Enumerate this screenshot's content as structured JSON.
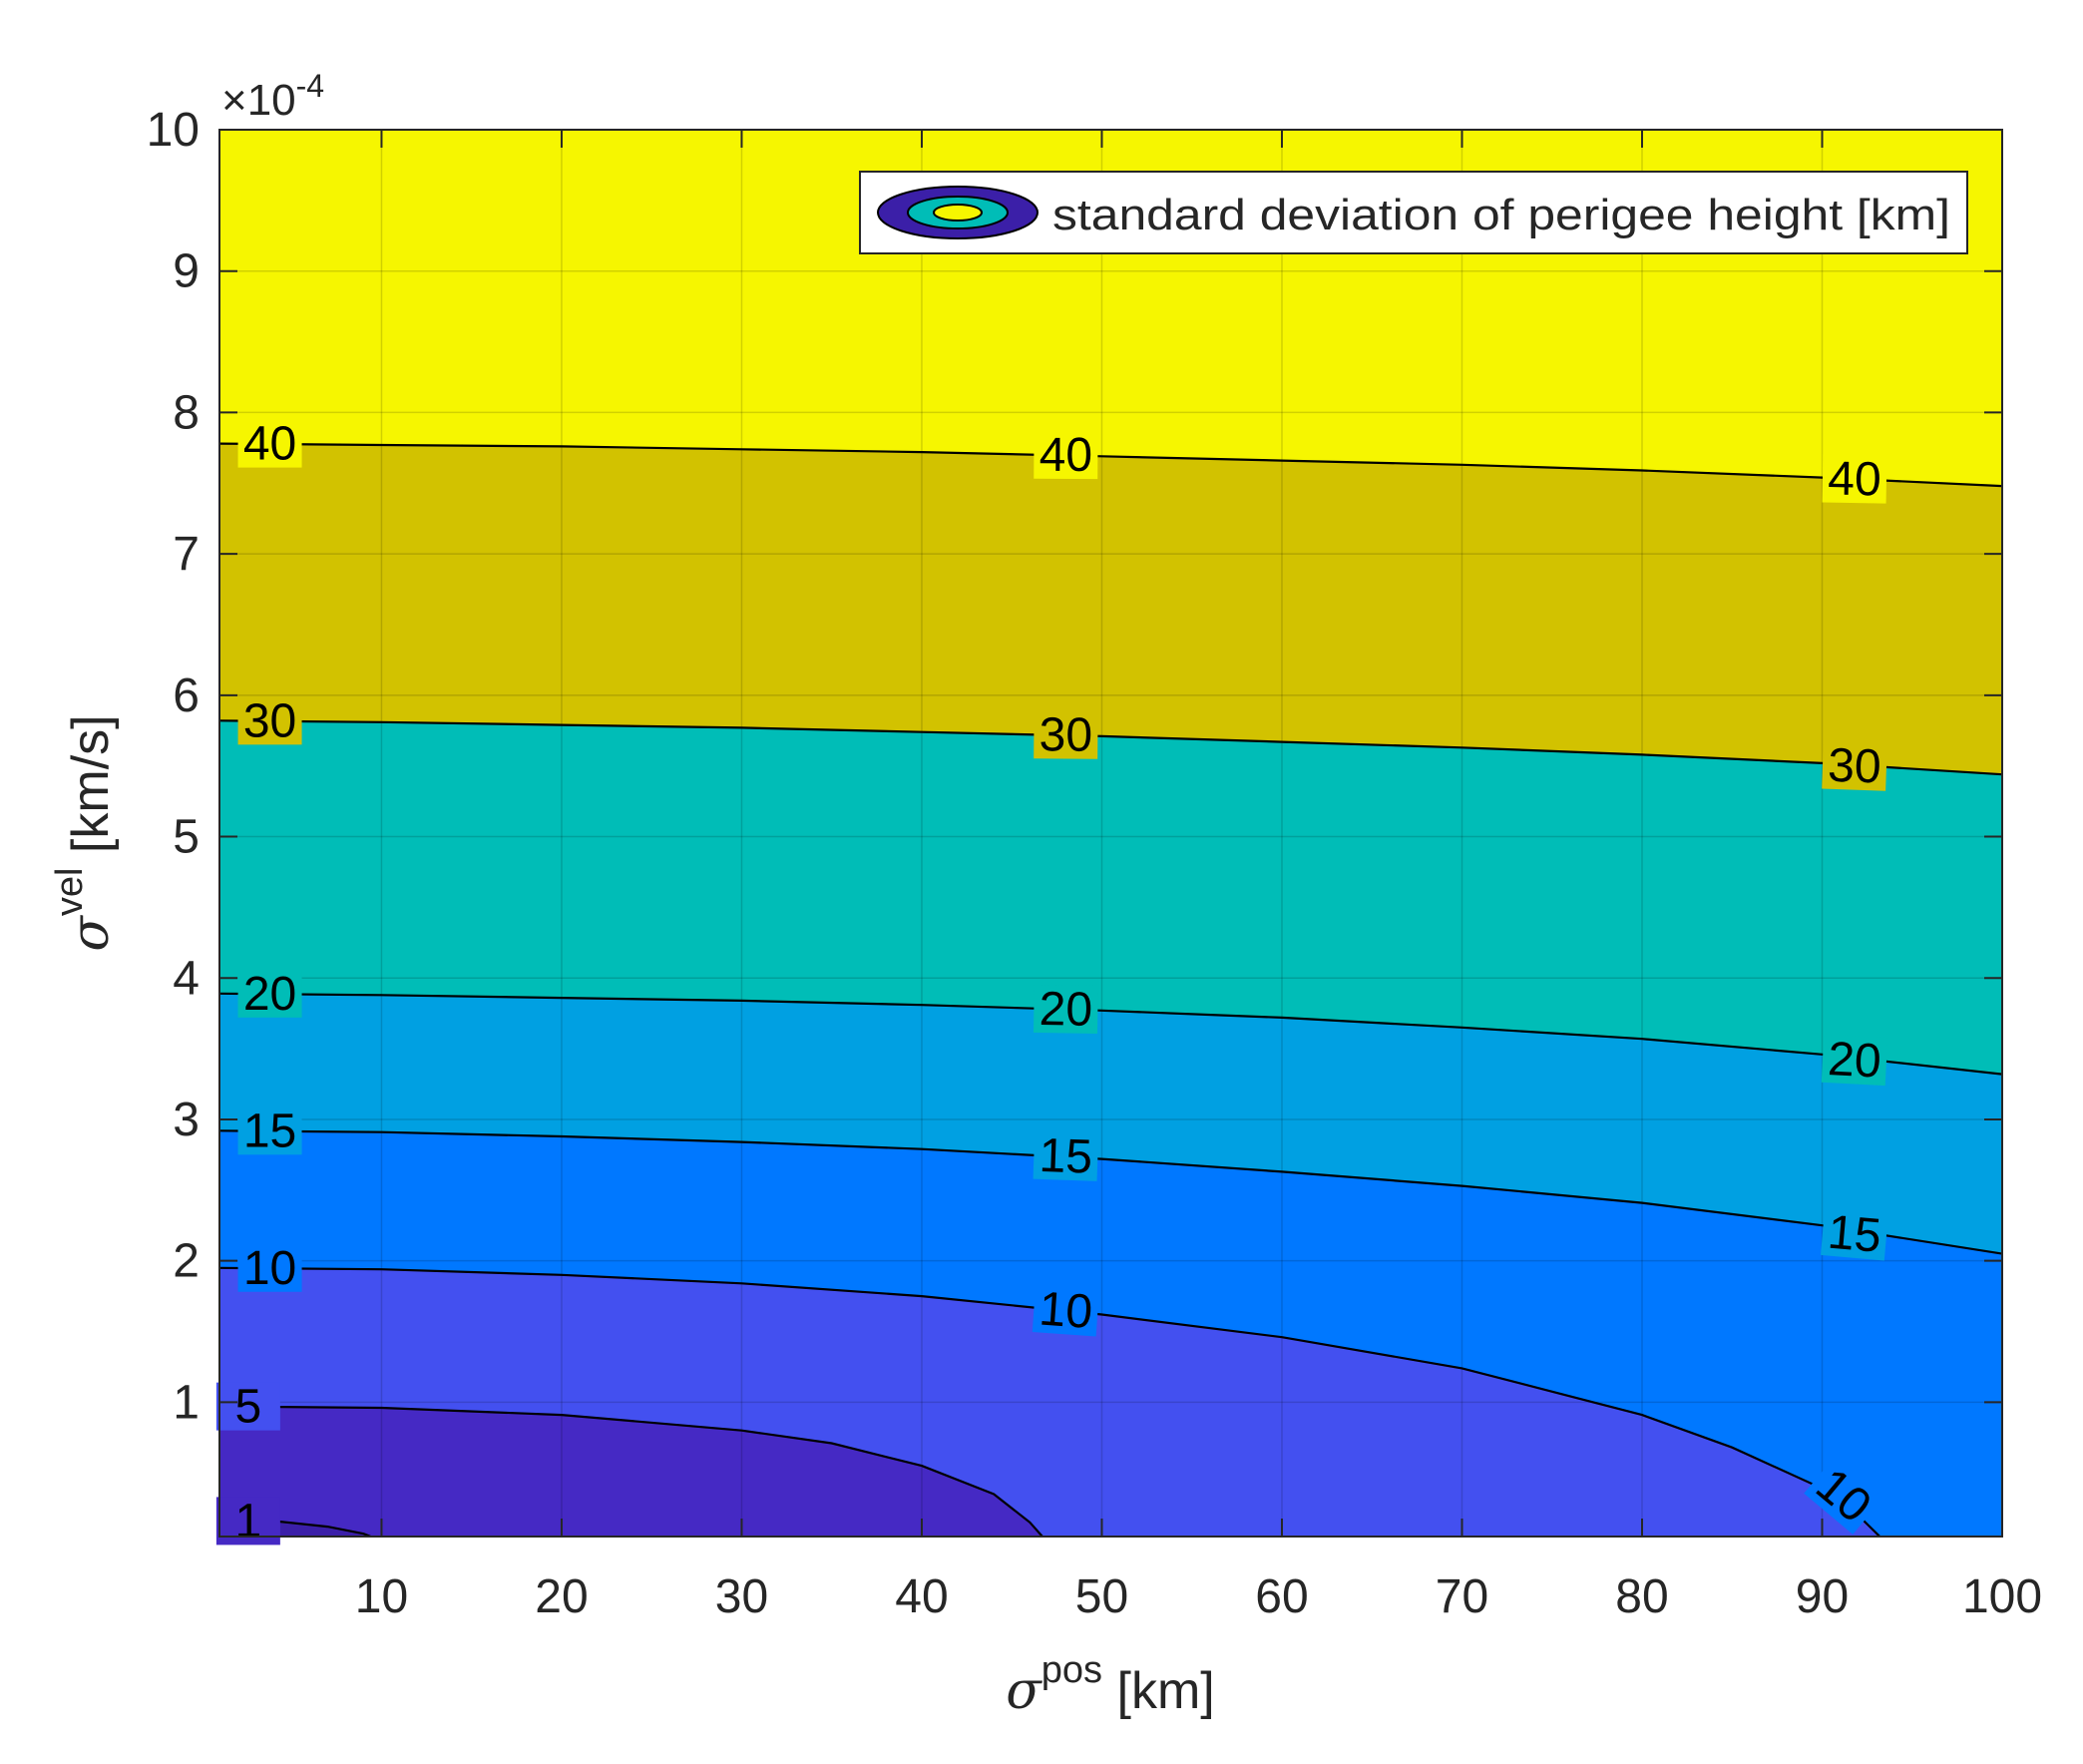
{
  "chart_data": {
    "type": "contour",
    "xlabel": {
      "symbol": "σ",
      "sup": "pos",
      "unit": " [km]"
    },
    "ylabel": {
      "symbol": "σ",
      "sup": "vel",
      "unit": " [km/s]"
    },
    "exponent_label": {
      "prefix": "×10",
      "sup": "-4"
    },
    "xlim": [
      1,
      100
    ],
    "ylim": [
      0.05,
      10
    ],
    "x_ticks": [
      10,
      20,
      30,
      40,
      50,
      60,
      70,
      80,
      90,
      100
    ],
    "y_ticks": [
      1,
      2,
      3,
      4,
      5,
      6,
      7,
      8,
      9,
      10
    ],
    "grid": true,
    "legend": {
      "label": "standard deviation of perigee height [km]",
      "position": "top-right"
    },
    "levels": [
      1,
      5,
      10,
      15,
      20,
      30,
      40
    ],
    "band_colors": [
      "#3b1fa8",
      "#4529c4",
      "#4350f0",
      "#0078ff",
      "#00a0e2",
      "#00bdb7",
      "#d2c200",
      "#f6f600"
    ],
    "contours": [
      {
        "level": 40,
        "label": "40",
        "x": [
          1,
          10,
          20,
          30,
          40,
          50,
          60,
          70,
          80,
          90,
          100
        ],
        "y": [
          7.78,
          7.77,
          7.76,
          7.74,
          7.72,
          7.69,
          7.66,
          7.63,
          7.59,
          7.54,
          7.48
        ]
      },
      {
        "level": 30,
        "label": "30",
        "x": [
          1,
          10,
          20,
          30,
          40,
          50,
          60,
          70,
          80,
          90,
          100
        ],
        "y": [
          5.82,
          5.81,
          5.79,
          5.77,
          5.74,
          5.71,
          5.67,
          5.63,
          5.58,
          5.52,
          5.44
        ]
      },
      {
        "level": 20,
        "label": "20",
        "x": [
          1,
          10,
          20,
          30,
          40,
          50,
          60,
          70,
          80,
          90,
          100
        ],
        "y": [
          3.89,
          3.88,
          3.86,
          3.84,
          3.81,
          3.77,
          3.72,
          3.65,
          3.57,
          3.46,
          3.32
        ]
      },
      {
        "level": 15,
        "label": "15",
        "x": [
          1,
          10,
          20,
          30,
          40,
          50,
          60,
          70,
          80,
          90,
          100
        ],
        "y": [
          2.92,
          2.91,
          2.88,
          2.84,
          2.79,
          2.72,
          2.63,
          2.53,
          2.41,
          2.25,
          2.05
        ]
      },
      {
        "level": 10,
        "label": "10",
        "x": [
          1,
          10,
          20,
          30,
          40,
          50,
          60,
          70,
          80,
          85,
          90,
          92,
          93.2
        ],
        "y": [
          1.95,
          1.94,
          1.9,
          1.84,
          1.75,
          1.62,
          1.46,
          1.24,
          0.91,
          0.68,
          0.39,
          0.2,
          0.05
        ]
      },
      {
        "level": 5,
        "label": "5",
        "x": [
          1,
          10,
          20,
          30,
          35,
          40,
          44,
          46,
          46.7
        ],
        "y": [
          0.97,
          0.96,
          0.91,
          0.8,
          0.71,
          0.55,
          0.35,
          0.15,
          0.05
        ]
      },
      {
        "level": 1,
        "label": "1",
        "x": [
          1,
          4,
          7,
          9,
          9.4
        ],
        "y": [
          0.17,
          0.16,
          0.12,
          0.07,
          0.05
        ]
      }
    ],
    "contour_labels": [
      {
        "label": "40",
        "x": 3.8,
        "y": 7.78,
        "angle": 0
      },
      {
        "label": "40",
        "x": 48,
        "y": 7.7,
        "angle": 0.3
      },
      {
        "label": "40",
        "x": 91.8,
        "y": 7.53,
        "angle": 1
      },
      {
        "label": "30",
        "x": 3.8,
        "y": 5.82,
        "angle": 0
      },
      {
        "label": "30",
        "x": 48,
        "y": 5.72,
        "angle": 0.5
      },
      {
        "label": "30",
        "x": 91.8,
        "y": 5.5,
        "angle": 2
      },
      {
        "label": "20",
        "x": 3.8,
        "y": 3.89,
        "angle": 0
      },
      {
        "label": "20",
        "x": 48,
        "y": 3.78,
        "angle": 1
      },
      {
        "label": "20",
        "x": 91.8,
        "y": 3.42,
        "angle": 3
      },
      {
        "label": "15",
        "x": 3.8,
        "y": 2.92,
        "angle": 0
      },
      {
        "label": "15",
        "x": 48,
        "y": 2.74,
        "angle": 2
      },
      {
        "label": "15",
        "x": 91.8,
        "y": 2.19,
        "angle": 5
      },
      {
        "label": "10",
        "x": 3.8,
        "y": 1.95,
        "angle": 0
      },
      {
        "label": "10",
        "x": 48,
        "y": 1.65,
        "angle": 4
      },
      {
        "label": "10",
        "x": 91.2,
        "y": 0.34,
        "angle": 40
      },
      {
        "label": "5",
        "x": 2.6,
        "y": 0.97,
        "angle": 0
      },
      {
        "label": "1",
        "x": 2.6,
        "y": 0.16,
        "angle": 0
      }
    ]
  }
}
